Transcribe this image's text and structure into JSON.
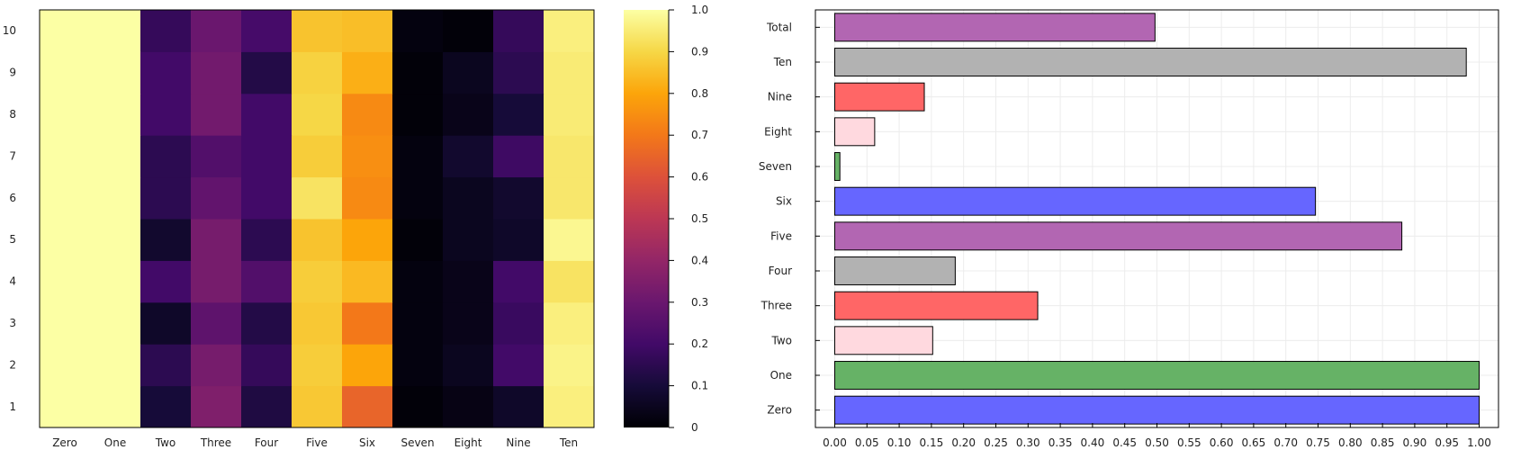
{
  "chart_data": [
    {
      "type": "heatmap",
      "x_categories": [
        "Zero",
        "One",
        "Two",
        "Three",
        "Four",
        "Five",
        "Six",
        "Seven",
        "Eight",
        "Nine",
        "Ten"
      ],
      "y_categories": [
        "1",
        "2",
        "3",
        "4",
        "5",
        "6",
        "7",
        "8",
        "9",
        "10"
      ],
      "values": [
        [
          1.0,
          1.0,
          0.1,
          0.35,
          0.12,
          0.87,
          0.65,
          0.01,
          0.03,
          0.07,
          0.96
        ],
        [
          1.0,
          1.0,
          0.15,
          0.33,
          0.17,
          0.88,
          0.8,
          0.02,
          0.05,
          0.2,
          0.97
        ],
        [
          1.0,
          1.0,
          0.07,
          0.27,
          0.13,
          0.87,
          0.7,
          0.02,
          0.04,
          0.18,
          0.96
        ],
        [
          1.0,
          1.0,
          0.2,
          0.33,
          0.24,
          0.88,
          0.84,
          0.02,
          0.04,
          0.2,
          0.93
        ],
        [
          1.0,
          1.0,
          0.08,
          0.33,
          0.15,
          0.86,
          0.8,
          0.01,
          0.05,
          0.07,
          0.98
        ],
        [
          1.0,
          1.0,
          0.15,
          0.28,
          0.2,
          0.93,
          0.74,
          0.02,
          0.05,
          0.08,
          0.94
        ],
        [
          1.0,
          1.0,
          0.15,
          0.24,
          0.2,
          0.88,
          0.75,
          0.02,
          0.08,
          0.19,
          0.94
        ],
        [
          1.0,
          1.0,
          0.2,
          0.32,
          0.2,
          0.9,
          0.74,
          0.01,
          0.04,
          0.1,
          0.95
        ],
        [
          1.0,
          1.0,
          0.2,
          0.32,
          0.13,
          0.89,
          0.82,
          0.01,
          0.05,
          0.15,
          0.95
        ],
        [
          1.0,
          1.0,
          0.17,
          0.3,
          0.21,
          0.86,
          0.85,
          0.02,
          0.01,
          0.17,
          0.96
        ]
      ],
      "colorbar": {
        "min": 0,
        "max": 1,
        "ticks": [
          0,
          0.1,
          0.2,
          0.3,
          0.4,
          0.5,
          0.6,
          0.7,
          0.8,
          0.9,
          1.0
        ],
        "tick_labels": [
          "0",
          "0.1",
          "0.2",
          "0.3",
          "0.4",
          "0.5",
          "0.6",
          "0.7",
          "0.8",
          "0.9",
          "1.0"
        ],
        "colormap": "inferno"
      },
      "grid": false
    },
    {
      "type": "bar",
      "orientation": "horizontal",
      "categories": [
        "Zero",
        "One",
        "Two",
        "Three",
        "Four",
        "Five",
        "Six",
        "Seven",
        "Eight",
        "Nine",
        "Ten",
        "Total"
      ],
      "values": [
        1.0,
        1.0,
        0.152,
        0.315,
        0.187,
        0.88,
        0.746,
        0.008,
        0.062,
        0.139,
        0.98,
        0.497
      ],
      "colors": [
        "#6666ff",
        "#66b266",
        "#ffd9df",
        "#ff6666",
        "#b2b2b2",
        "#b266b2",
        "#6666ff",
        "#66b266",
        "#ffd9df",
        "#ff6666",
        "#b2b2b2",
        "#b266b2"
      ],
      "xlim": [
        -0.03,
        1.03
      ],
      "xticks": [
        0,
        0.05,
        0.1,
        0.15,
        0.2,
        0.25,
        0.3,
        0.35,
        0.4,
        0.45,
        0.5,
        0.55,
        0.6,
        0.65,
        0.7,
        0.75,
        0.8,
        0.85,
        0.9,
        0.95,
        1.0
      ],
      "xtick_labels": [
        "0.00",
        "0.05",
        "0.10",
        "0.15",
        "0.20",
        "0.25",
        "0.30",
        "0.35",
        "0.40",
        "0.45",
        "0.50",
        "0.55",
        "0.60",
        "0.65",
        "0.70",
        "0.75",
        "0.80",
        "0.85",
        "0.90",
        "0.95",
        "1.00"
      ],
      "grid": true
    }
  ]
}
